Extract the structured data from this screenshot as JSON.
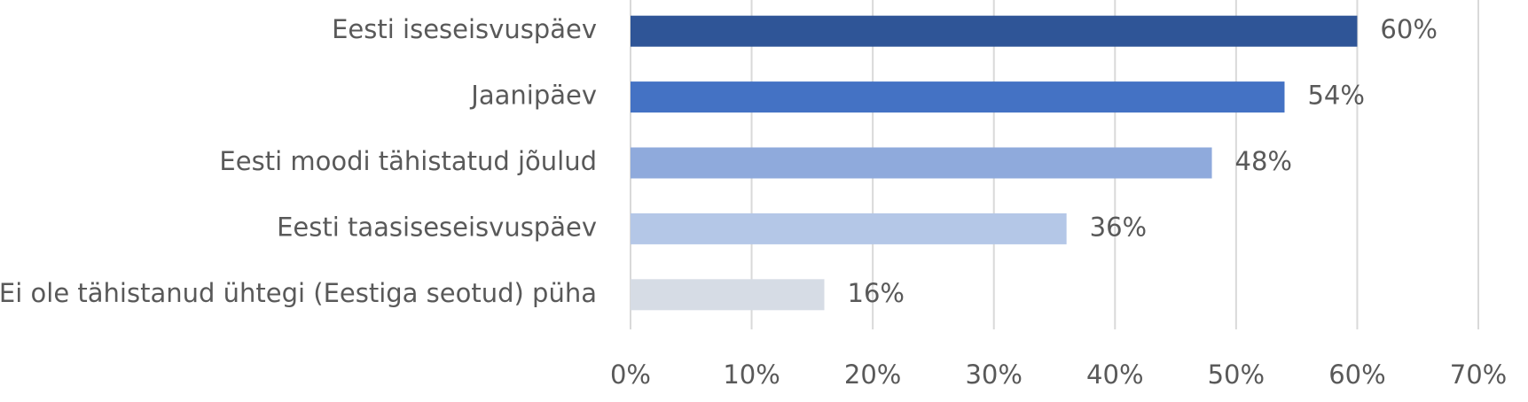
{
  "chart_data": {
    "type": "hbar",
    "categories": [
      "Eesti iseseisvuspäev",
      "Jaanipäev",
      "Eesti moodi tähistatud jõulud",
      "Eesti taasiseseisvuspäev",
      "Ei ole tähistanud ühtegi (Eestiga seotud) püha"
    ],
    "values": [
      60,
      54,
      48,
      36,
      16
    ],
    "value_labels": [
      "60%",
      "54%",
      "48%",
      "36%",
      "16%"
    ],
    "colors": [
      "#2f5597",
      "#4472c4",
      "#8faadc",
      "#b4c7e7",
      "#d6dce5"
    ],
    "xlim": [
      0,
      70
    ],
    "xticks": [
      {
        "value": 0,
        "label": "0%"
      },
      {
        "value": 10,
        "label": "10%"
      },
      {
        "value": 20,
        "label": "20%"
      },
      {
        "value": 30,
        "label": "30%"
      },
      {
        "value": 40,
        "label": "40%"
      },
      {
        "value": 50,
        "label": "50%"
      },
      {
        "value": 60,
        "label": "60%"
      },
      {
        "value": 70,
        "label": "70%"
      }
    ],
    "grid": true
  }
}
